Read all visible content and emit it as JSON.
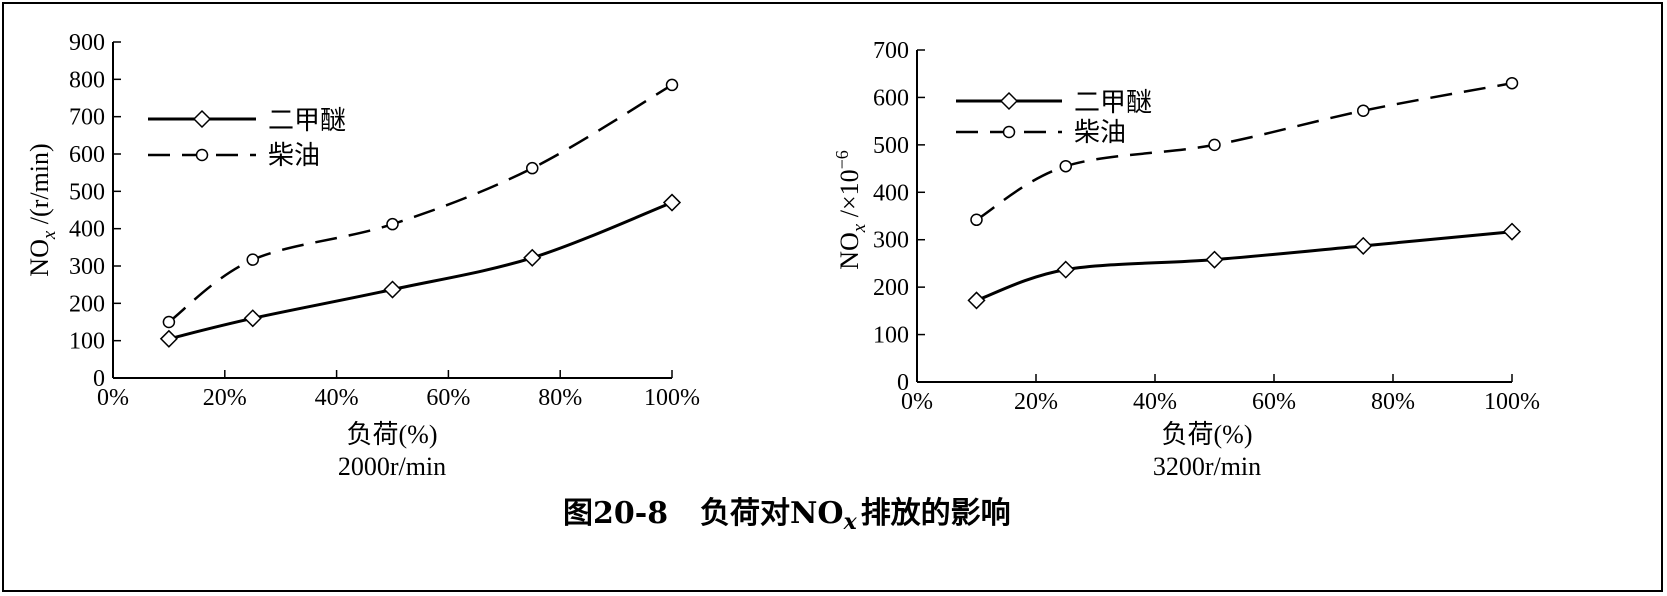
{
  "figure": {
    "caption_prefix": "图20-8",
    "caption_a": "负荷对NO",
    "caption_sub": "x",
    "caption_b": "排放的影响"
  },
  "chart_data": [
    {
      "type": "line",
      "x": [
        10,
        25,
        50,
        75,
        100
      ],
      "xticks": [
        "0%",
        "20%",
        "40%",
        "60%",
        "80%",
        "100%"
      ],
      "xlim": [
        0,
        100
      ],
      "ylim": [
        0,
        900
      ],
      "yticks": [
        0,
        100,
        200,
        300,
        400,
        500,
        600,
        700,
        800,
        900
      ],
      "xlabel": "负荷(%)",
      "subtitle": "2000r/min",
      "ylabel_main": "NO",
      "ylabel_sub": "x",
      "ylabel_rest": " /(r/min)",
      "legend_position": "top-left",
      "series": [
        {
          "name": "二甲醚",
          "style": "solid",
          "marker": "diamond",
          "values": [
            105,
            160,
            237,
            322,
            470
          ]
        },
        {
          "name": "柴油",
          "style": "dashed",
          "marker": "circle",
          "values": [
            150,
            317,
            412,
            562,
            785
          ]
        }
      ]
    },
    {
      "type": "line",
      "x": [
        10,
        25,
        50,
        75,
        100
      ],
      "xticks": [
        "0%",
        "20%",
        "40%",
        "60%",
        "80%",
        "100%"
      ],
      "xlim": [
        0,
        100
      ],
      "ylim": [
        0,
        700
      ],
      "yticks": [
        0,
        100,
        200,
        300,
        400,
        500,
        600,
        700
      ],
      "xlabel": "负荷(%)",
      "subtitle": "3200r/min",
      "ylabel_main": "NO",
      "ylabel_sub": "x",
      "ylabel_rest": " /×10",
      "ylabel_sup": "−6",
      "legend_position": "top-left",
      "series": [
        {
          "name": "二甲醚",
          "style": "solid",
          "marker": "diamond",
          "values": [
            172,
            237,
            258,
            287,
            317
          ]
        },
        {
          "name": "柴油",
          "style": "dashed",
          "marker": "circle",
          "values": [
            342,
            455,
            500,
            572,
            630
          ]
        }
      ]
    }
  ]
}
